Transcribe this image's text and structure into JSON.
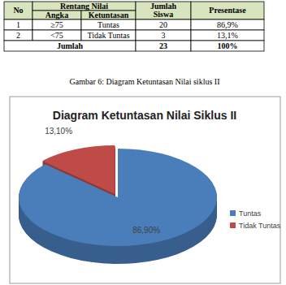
{
  "table": {
    "header": [
      "No",
      "Rentang Nilai",
      "Jumlah Siswa",
      "Presentase"
    ],
    "subheader": [
      "Angka",
      "Ketuntasan"
    ],
    "rows": [
      [
        "1",
        "≥75",
        "Tuntas",
        "20",
        "86,9%"
      ],
      [
        "2",
        "<75",
        "Tidak Tuntas",
        "3",
        "13,1%"
      ]
    ],
    "footer": [
      "Jumlah",
      "23",
      "100%"
    ]
  },
  "caption": "Gambar 6: Diagram Ketuntasan Nilai siklus II",
  "chart_data": {
    "type": "pie",
    "title": "Diagram Ketuntasan Nilai Siklus II",
    "categories": [
      "Tuntas",
      "Tidak Tuntas"
    ],
    "values": [
      86.9,
      13.1
    ],
    "value_labels": [
      "86,90%",
      "13,10%"
    ],
    "colors": [
      "#4a7ebb",
      "#be4b48"
    ],
    "data_labels": true,
    "legend": "right"
  }
}
